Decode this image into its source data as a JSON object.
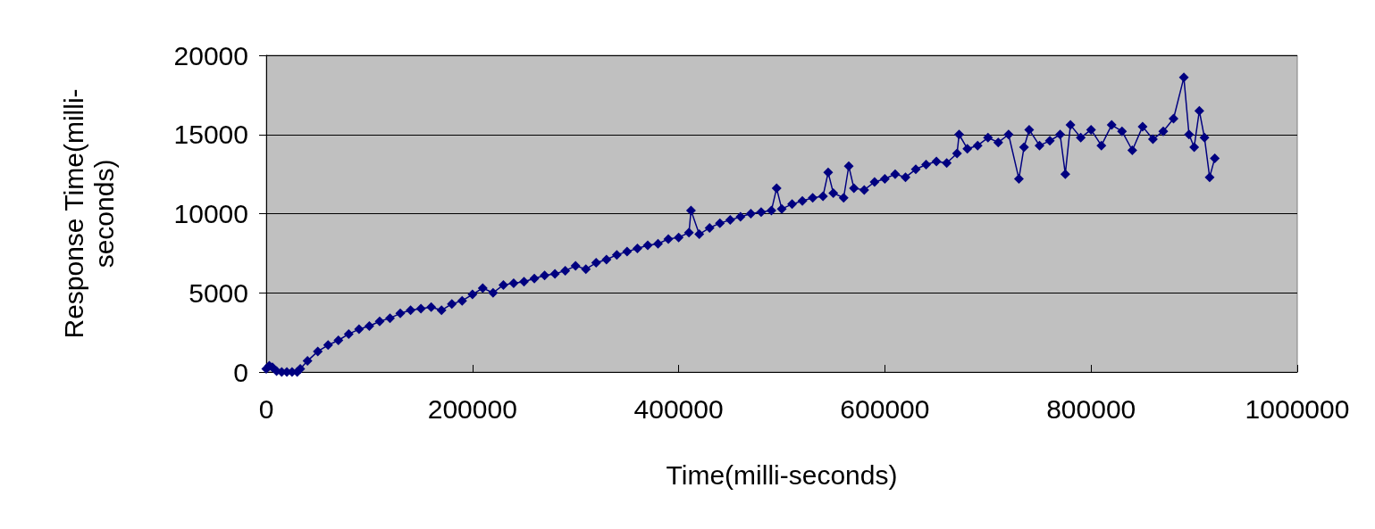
{
  "chart_data": {
    "type": "line",
    "xlabel": "Time(milli-seconds)",
    "ylabel": "Response Time(milli-\nseconds)",
    "xlim": [
      0,
      1000000
    ],
    "xticks": [
      0,
      200000,
      400000,
      600000,
      800000,
      1000000
    ],
    "ylim": [
      0,
      20000
    ],
    "yticks": [
      0,
      5000,
      10000,
      15000,
      20000
    ],
    "grid": "y",
    "marker": "diamond",
    "line_style": "solid",
    "series": [
      {
        "color": "#000080",
        "x": [
          0,
          3000,
          6000,
          10000,
          15000,
          20000,
          25000,
          30000,
          33000,
          40000,
          50000,
          60000,
          70000,
          80000,
          90000,
          100000,
          110000,
          120000,
          130000,
          140000,
          150000,
          160000,
          170000,
          180000,
          190000,
          200000,
          210000,
          220000,
          230000,
          240000,
          250000,
          260000,
          270000,
          280000,
          290000,
          300000,
          310000,
          320000,
          330000,
          340000,
          350000,
          360000,
          370000,
          380000,
          390000,
          400000,
          410000,
          412000,
          420000,
          430000,
          440000,
          450000,
          460000,
          470000,
          480000,
          490000,
          495000,
          500000,
          510000,
          520000,
          530000,
          540000,
          545000,
          550000,
          560000,
          565000,
          570000,
          580000,
          590000,
          600000,
          610000,
          620000,
          630000,
          640000,
          650000,
          660000,
          670000,
          672000,
          680000,
          690000,
          700000,
          710000,
          720000,
          730000,
          735000,
          740000,
          750000,
          760000,
          770000,
          775000,
          780000,
          790000,
          800000,
          810000,
          820000,
          830000,
          840000,
          850000,
          860000,
          870000,
          880000,
          890000,
          895000,
          900000,
          905000,
          910000,
          915000,
          920000
        ],
        "values": [
          200,
          400,
          300,
          50,
          0,
          0,
          0,
          0,
          200,
          700,
          1300,
          1700,
          2000,
          2400,
          2700,
          2900,
          3200,
          3400,
          3700,
          3900,
          4000,
          4100,
          3900,
          4300,
          4500,
          4900,
          5300,
          5000,
          5500,
          5600,
          5700,
          5900,
          6100,
          6200,
          6400,
          6700,
          6500,
          6900,
          7100,
          7400,
          7600,
          7800,
          8000,
          8100,
          8400,
          8500,
          8800,
          10200,
          8700,
          9100,
          9400,
          9600,
          9800,
          10000,
          10100,
          10200,
          11600,
          10300,
          10600,
          10800,
          11000,
          11100,
          12600,
          11300,
          11000,
          13000,
          11600,
          11500,
          12000,
          12200,
          12500,
          12300,
          12800,
          13100,
          13300,
          13200,
          13800,
          15000,
          14100,
          14300,
          14800,
          14500,
          15000,
          12200,
          14200,
          15300,
          14300,
          14600,
          15000,
          12500,
          15600,
          14800,
          15300,
          14300,
          15600,
          15200,
          14000,
          15500,
          14700,
          15200,
          16000,
          18600,
          15000,
          14200,
          16500,
          14800,
          12300,
          13500
        ]
      }
    ]
  }
}
